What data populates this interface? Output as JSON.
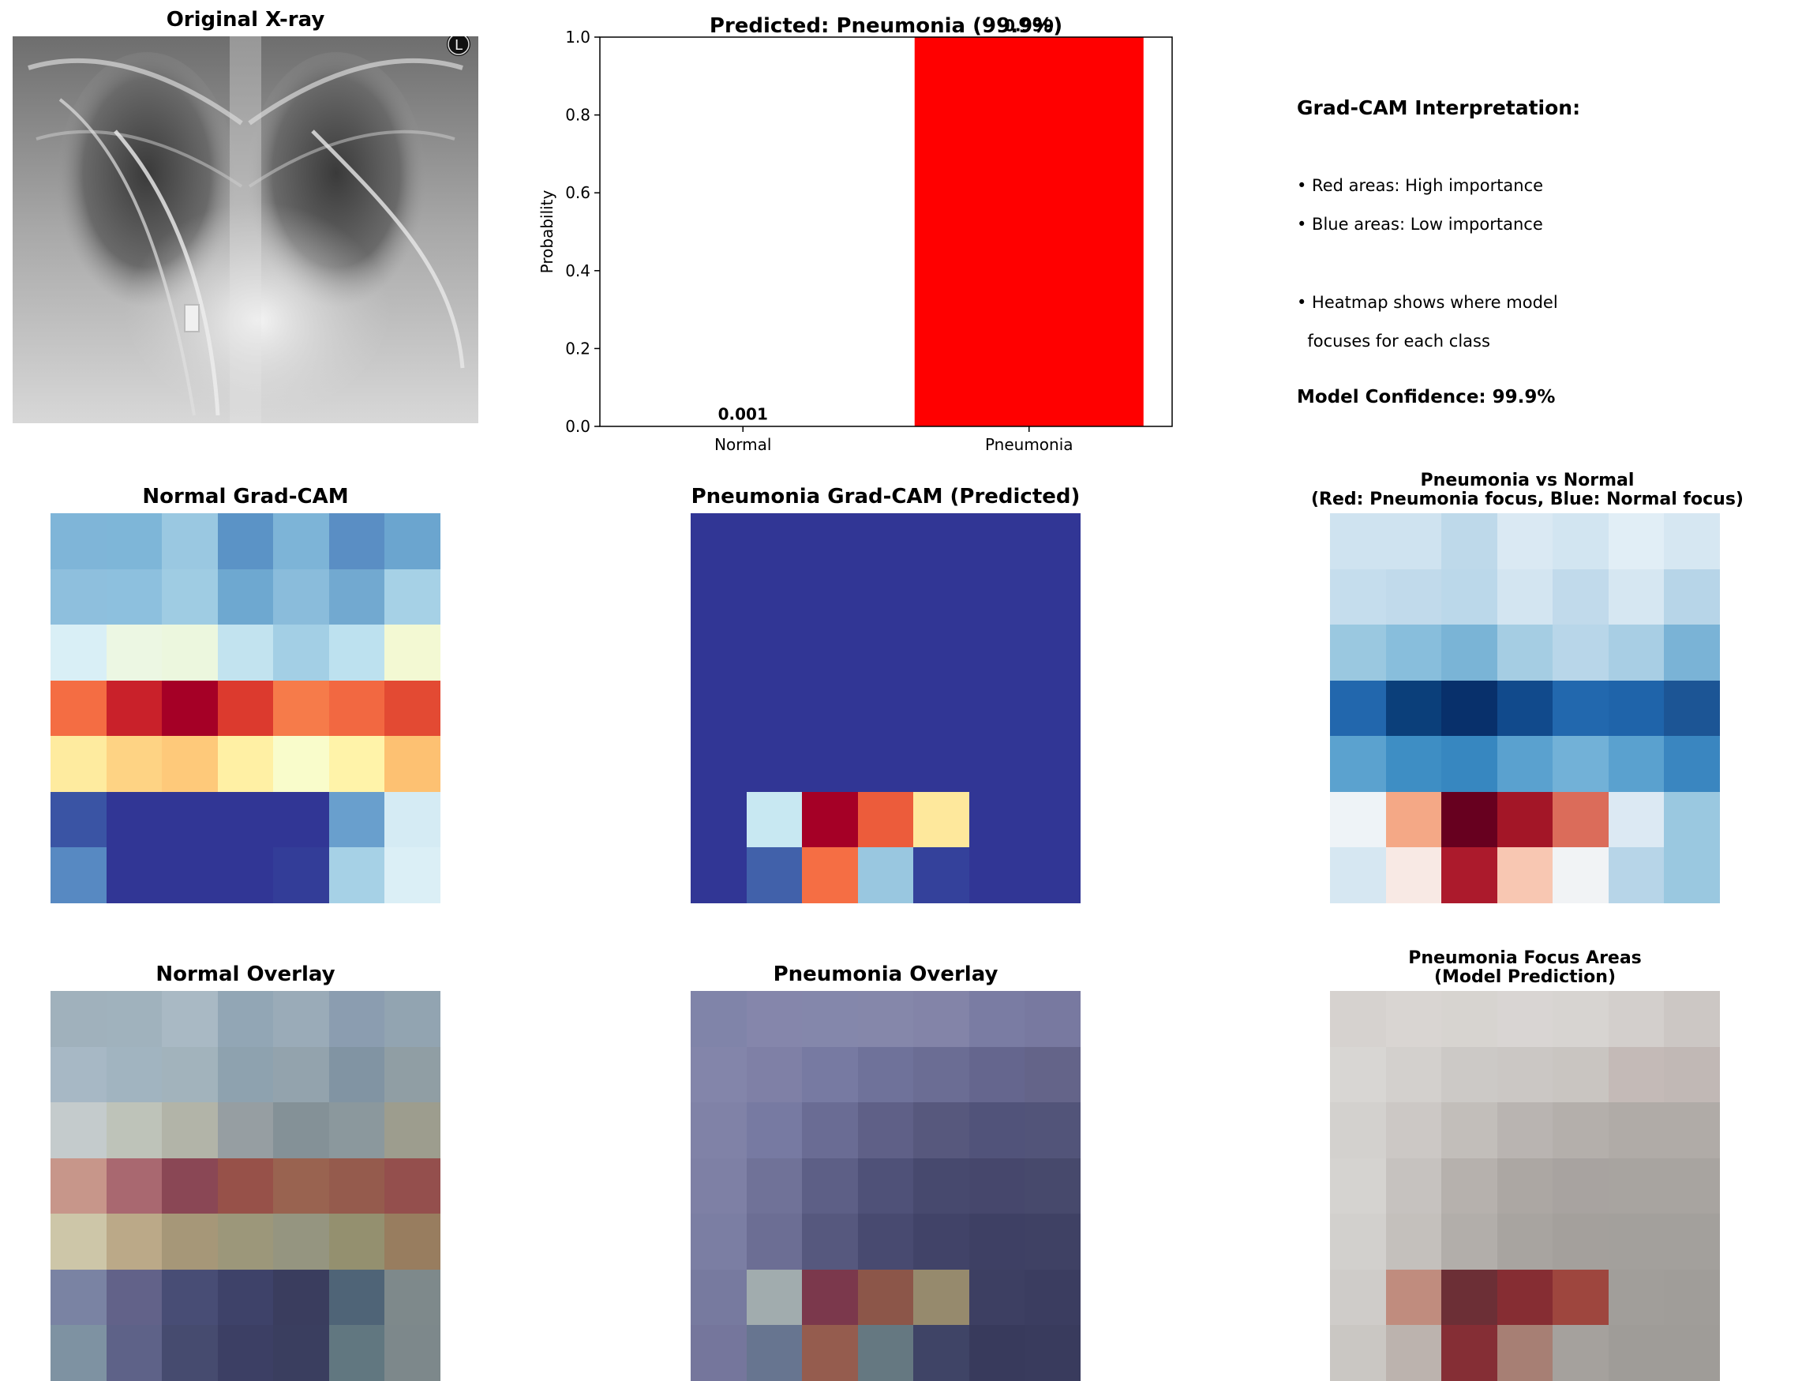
{
  "xray_panel": {
    "title": "Original X-ray",
    "logo_letter": "L"
  },
  "chart_data": {
    "type": "bar",
    "title": "Predicted: Pneumonia (99.9%)",
    "categories": [
      "Normal",
      "Pneumonia"
    ],
    "values": [
      0.001,
      0.999
    ],
    "value_labels": [
      "0.001",
      "0.999"
    ],
    "colors": [
      "#ffffff",
      "#ff0000"
    ],
    "xlabel": "",
    "ylabel": "Probability",
    "ylim": [
      0,
      1.0
    ],
    "yticks": [
      "0.0",
      "0.2",
      "0.4",
      "0.6",
      "0.8",
      "1.0"
    ],
    "grid": false
  },
  "interpretation": {
    "heading": "Grad-CAM Interpretation:",
    "lines": [
      "• Red areas: High importance",
      "• Blue areas: Low importance",
      "• Heatmap shows where model",
      "  focuses for each class"
    ],
    "confidence": "Model Confidence: 99.9%"
  },
  "panels": {
    "normal_gradcam": {
      "title": "Normal Grad-CAM",
      "colors": [
        [
          "#7fb5d8",
          "#7eb6d8",
          "#9ac8e1",
          "#5b93c6",
          "#7db4d7",
          "#5a8ec4",
          "#6ba5cf"
        ],
        [
          "#8ebfdd",
          "#8dc0de",
          "#9fcce3",
          "#6ea8d0",
          "#8abcdb",
          "#72a9d0",
          "#a6d1e6"
        ],
        [
          "#d9eff6",
          "#ecf7e3",
          "#ecf7de",
          "#c2e3ef",
          "#a3cfe5",
          "#bde1ef",
          "#f3f9d3"
        ],
        [
          "#f46d43",
          "#c9212a",
          "#a50026",
          "#dc3a2e",
          "#f67b4a",
          "#f26841",
          "#e34a33"
        ],
        [
          "#feeb9f",
          "#fed384",
          "#fec97a",
          "#fff0a4",
          "#f9fccb",
          "#fff3a9",
          "#fdc172"
        ],
        [
          "#3a54a4",
          "#313695",
          "#313695",
          "#313695",
          "#313695",
          "#699fcd",
          "#d5ebf4"
        ],
        [
          "#5789c2",
          "#313695",
          "#313695",
          "#313695",
          "#333d98",
          "#a6d1e6",
          "#dbeff6"
        ]
      ]
    },
    "pneumonia_gradcam": {
      "title": "Pneumonia Grad-CAM (Predicted)",
      "colors": [
        [
          "#313695",
          "#313695",
          "#313695",
          "#313695",
          "#313695",
          "#313695",
          "#313695"
        ],
        [
          "#313695",
          "#313695",
          "#313695",
          "#313695",
          "#313695",
          "#313695",
          "#313695"
        ],
        [
          "#313695",
          "#313695",
          "#313695",
          "#313695",
          "#313695",
          "#313695",
          "#313695"
        ],
        [
          "#313695",
          "#313695",
          "#313695",
          "#313695",
          "#313695",
          "#313695",
          "#313695"
        ],
        [
          "#313695",
          "#313695",
          "#313695",
          "#313695",
          "#313695",
          "#313695",
          "#313695"
        ],
        [
          "#313695",
          "#c8e8f2",
          "#a50026",
          "#ec5c3b",
          "#fee89c",
          "#313695",
          "#313695"
        ],
        [
          "#313695",
          "#4161aa",
          "#f56e44",
          "#99c7e0",
          "#34419b",
          "#313695",
          "#313695"
        ]
      ]
    },
    "difference": {
      "title_lines": [
        "Pneumonia vs Normal",
        "(Red: Pneumonia focus, Blue: Normal focus)"
      ],
      "colors": [
        [
          "#cfe3f0",
          "#cfe3f0",
          "#bed9ea",
          "#dae9f3",
          "#d2e5f1",
          "#e1eef6",
          "#d6e7f2"
        ],
        [
          "#c5dded",
          "#c1daeb",
          "#bbd8ea",
          "#d3e5f1",
          "#c1daeb",
          "#d6e7f2",
          "#b7d5e8"
        ],
        [
          "#9ac8e0",
          "#88bedc",
          "#7ab4d6",
          "#a5cde3",
          "#b8d6e9",
          "#a8cee4",
          "#7ab3d6"
        ],
        [
          "#2267ad",
          "#0b3f7a",
          "#08306b",
          "#114a8c",
          "#2268ae",
          "#1f64aa",
          "#1c5595"
        ],
        [
          "#5ba2cf",
          "#3e8ec4",
          "#3787c0",
          "#5aa1cf",
          "#72b1d7",
          "#5aa1cf",
          "#3a86c0"
        ],
        [
          "#eef3f7",
          "#f4a886",
          "#67001f",
          "#a31627",
          "#db6c5a",
          "#dce9f3",
          "#9ac8e0"
        ],
        [
          "#d6e7f2",
          "#f8e9e4",
          "#ac1a2c",
          "#f8c7b2",
          "#f1f3f5",
          "#b7d5e8",
          "#9ac8e0"
        ]
      ]
    },
    "normal_overlay": {
      "title": "Normal Overlay",
      "colors": [
        [
          "#a0b1bc",
          "#a0b2bd",
          "#a9b9c4",
          "#92a6b5",
          "#9aabb8",
          "#8b9db0",
          "#92a4b1"
        ],
        [
          "#a7b8c5",
          "#a1b4c0",
          "#a2b3bc",
          "#8ea2af",
          "#93a3ad",
          "#8194a3",
          "#909ea4"
        ],
        [
          "#c4cbcc",
          "#bec3b9",
          "#b2b4a8",
          "#969ea2",
          "#849197",
          "#8b989d",
          "#9d9d8e"
        ],
        [
          "#c7968a",
          "#a96870",
          "#8a4755",
          "#975149",
          "#996350",
          "#955b4d",
          "#944f4d"
        ],
        [
          "#cdc6a8",
          "#bba988",
          "#a69778",
          "#9c977a",
          "#959580",
          "#94906f",
          "#987d5f"
        ],
        [
          "#7a83a3",
          "#626289",
          "#484d75",
          "#3e4269",
          "#3a3d5e",
          "#4f6477",
          "#7e898b"
        ],
        [
          "#7e92a2",
          "#5e6288",
          "#464b6f",
          "#3c3f64",
          "#3a3e5f",
          "#617780",
          "#7d888b"
        ]
      ]
    },
    "pneumonia_overlay": {
      "title": "Pneumonia Overlay",
      "colors": [
        [
          "#8084a9",
          "#8586ab",
          "#8487ab",
          "#8587aa",
          "#8384a8",
          "#7a7ca3",
          "#7879a0"
        ],
        [
          "#8385aa",
          "#7f80a6",
          "#777aa2",
          "#6f729a",
          "#6b6d94",
          "#65668e",
          "#646489"
        ],
        [
          "#8082a7",
          "#777aa2",
          "#6a6c94",
          "#5f6087",
          "#57587d",
          "#51537a",
          "#525479"
        ],
        [
          "#7e80a5",
          "#707298",
          "#5d5f86",
          "#4f5178",
          "#47496e",
          "#46476c",
          "#47496c"
        ],
        [
          "#7b7ea3",
          "#6c6e94",
          "#56587e",
          "#484a70",
          "#414368",
          "#3e4064",
          "#3f4164"
        ],
        [
          "#777a9f",
          "#a1acae",
          "#7b384c",
          "#8c5649",
          "#968a6d",
          "#3d3f62",
          "#3b3d60"
        ],
        [
          "#75769c",
          "#677590",
          "#955c4e",
          "#657881",
          "#3f4466",
          "#383a5c",
          "#393b5d"
        ]
      ]
    },
    "focus_areas": {
      "title_lines": [
        "Pneumonia Focus Areas",
        "(Model Prediction)"
      ],
      "colors": [
        [
          "#d6d2cf",
          "#d9d5d2",
          "#d7d4d0",
          "#d9d5d3",
          "#d7d4d1",
          "#d3cfcc",
          "#ccc7c4"
        ],
        [
          "#d8d6d3",
          "#d3d0cd",
          "#ccc9c6",
          "#cbc7c4",
          "#c9c5c1",
          "#c4bab7",
          "#c1b8b5"
        ],
        [
          "#d3d1ce",
          "#ccc8c5",
          "#c2beba",
          "#b9b4b1",
          "#b4afab",
          "#b0aba7",
          "#b0aba7"
        ],
        [
          "#d5d3d0",
          "#c6c2bf",
          "#b6b1ad",
          "#aca7a3",
          "#a8a3a0",
          "#a8a4a0",
          "#a8a4a0"
        ],
        [
          "#d2d0cd",
          "#c4c0bc",
          "#b2aeaa",
          "#a8a4a0",
          "#a4a09c",
          "#a3a09c",
          "#a3a09c"
        ],
        [
          "#cfccc9",
          "#c08c7e",
          "#6c2f36",
          "#862d33",
          "#9e463e",
          "#a19e9a",
          "#a09d99"
        ],
        [
          "#cac7c3",
          "#bcb3ae",
          "#852e35",
          "#a77f74",
          "#a5a19d",
          "#9f9c98",
          "#9f9c98"
        ]
      ]
    }
  }
}
